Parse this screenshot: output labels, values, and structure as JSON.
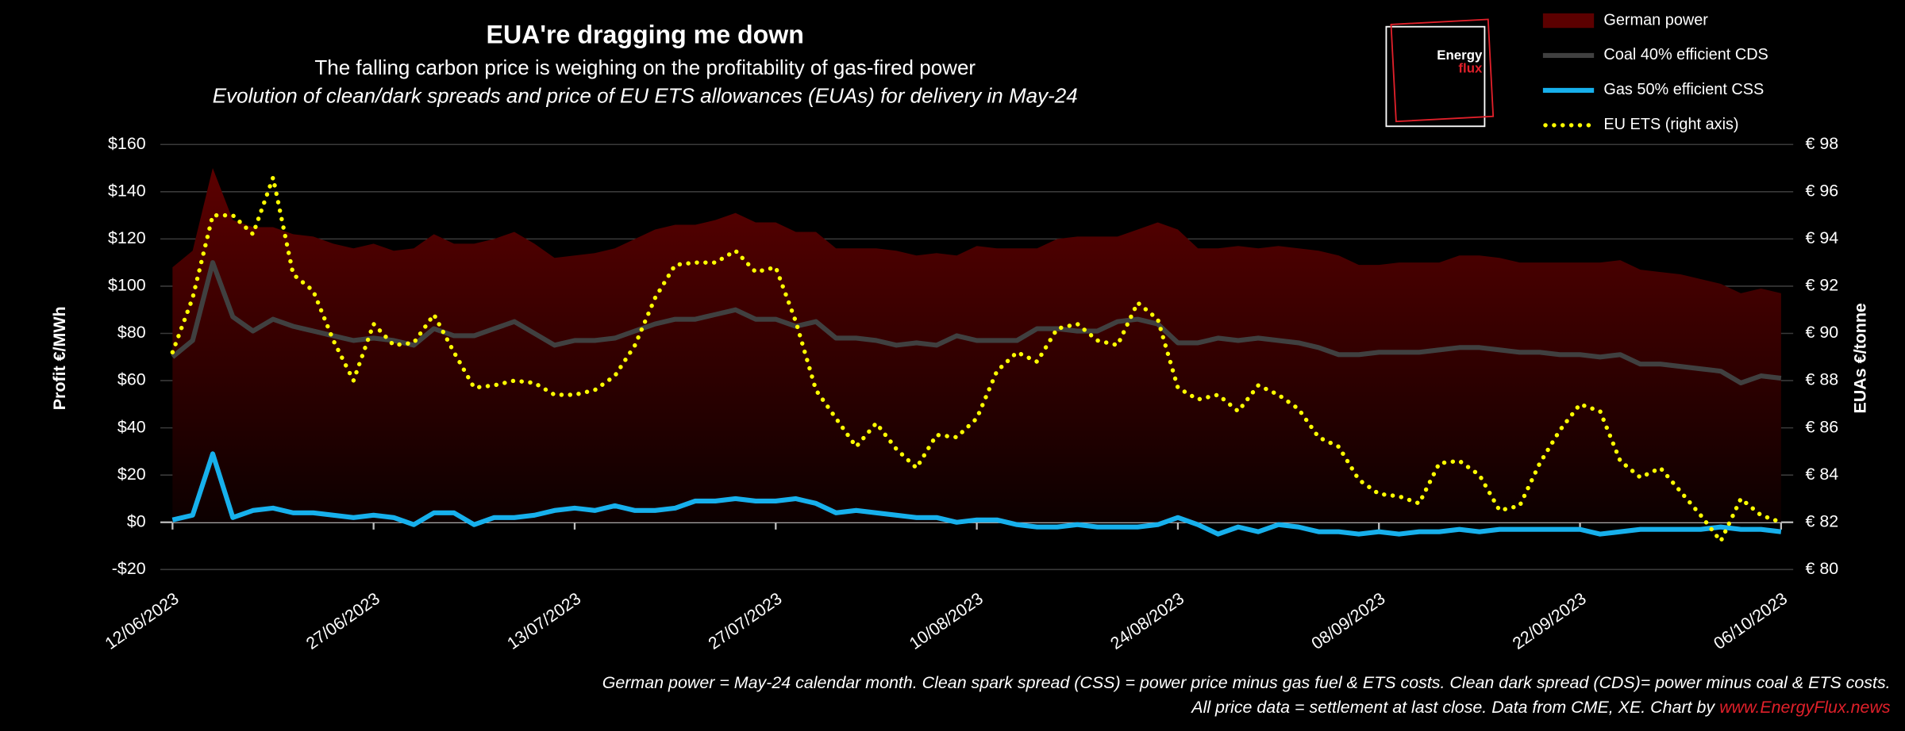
{
  "chart_data": {
    "type": "line",
    "title": "EUA're dragging me down",
    "subtitle": "The falling carbon price is weighing on the profitability of gas-fired power",
    "subtitle2": "Evolution of clean/dark spreads and price of EU ETS allowances (EUAs) for delivery in May-24",
    "ylabel": "Profit €/MWh",
    "y2label": "EUAs €/tonne",
    "logo": {
      "line1": "Energy",
      "line2": "flux"
    },
    "footnotes": [
      "German power = May-24 calendar month. Clean spark spread (CSS) = power price minus gas fuel & ETS costs. Clean dark spread (CDS)= power minus coal & ETS costs.",
      "All price data = settlement at last close. Data from CME, XE. Chart by"
    ],
    "footnote_link": "www.EnergyFlux.news",
    "categories": [
      "12/06/2023",
      null,
      null,
      null,
      null,
      null,
      null,
      null,
      null,
      null,
      "27/06/2023",
      null,
      null,
      null,
      null,
      null,
      null,
      null,
      null,
      null,
      "13/07/2023",
      null,
      null,
      null,
      null,
      null,
      null,
      null,
      null,
      null,
      "27/07/2023",
      null,
      null,
      null,
      null,
      null,
      null,
      null,
      null,
      null,
      "10/08/2023",
      null,
      null,
      null,
      null,
      null,
      null,
      null,
      null,
      null,
      "24/08/2023",
      null,
      null,
      null,
      null,
      null,
      null,
      null,
      null,
      null,
      "08/09/2023",
      null,
      null,
      null,
      null,
      null,
      null,
      null,
      null,
      null,
      "22/09/2023",
      null,
      null,
      null,
      null,
      null,
      null,
      null,
      null,
      null,
      "06/10/2023"
    ],
    "ylim": [
      -20,
      160
    ],
    "yticks": [
      {
        "value": -20,
        "label": "-$20"
      },
      {
        "value": 0,
        "label": "$0"
      },
      {
        "value": 20,
        "label": "$20"
      },
      {
        "value": 40,
        "label": "$40"
      },
      {
        "value": 60,
        "label": "$60"
      },
      {
        "value": 80,
        "label": "$80"
      },
      {
        "value": 100,
        "label": "$100"
      },
      {
        "value": 120,
        "label": "$120"
      },
      {
        "value": 140,
        "label": "$140"
      },
      {
        "value": 160,
        "label": "$160"
      }
    ],
    "y2lim": [
      80,
      98
    ],
    "y2ticks": [
      {
        "value": 80,
        "label": "€ 80"
      },
      {
        "value": 82,
        "label": "€ 82"
      },
      {
        "value": 84,
        "label": "€ 84"
      },
      {
        "value": 86,
        "label": "€ 86"
      },
      {
        "value": 88,
        "label": "€ 88"
      },
      {
        "value": 90,
        "label": "€ 90"
      },
      {
        "value": 92,
        "label": "€ 92"
      },
      {
        "value": 94,
        "label": "€ 94"
      },
      {
        "value": 96,
        "label": "€ 96"
      },
      {
        "value": 98,
        "label": "€ 98"
      }
    ],
    "grid": true,
    "legend": "top-right",
    "series": [
      {
        "name": "German power",
        "type": "area",
        "color": "#5c0000",
        "values": [
          108,
          115,
          150,
          128,
          125,
          125,
          122,
          121,
          118,
          116,
          118,
          115,
          116,
          122,
          118,
          118,
          120,
          123,
          118,
          112,
          113,
          114,
          116,
          120,
          124,
          126,
          126,
          128,
          131,
          127,
          127,
          123,
          123,
          116,
          116,
          116,
          115,
          113,
          114,
          113,
          117,
          116,
          116,
          116,
          120,
          121,
          121,
          121,
          124,
          127,
          124,
          116,
          116,
          117,
          116,
          117,
          116,
          115,
          113,
          109,
          109,
          110,
          110,
          110,
          113,
          113,
          112,
          110,
          110,
          110,
          110,
          110,
          111,
          107,
          106,
          105,
          103,
          101,
          97,
          99,
          97
        ]
      },
      {
        "name": "Coal 40% efficient CDS",
        "type": "line",
        "color": "#404040",
        "values": [
          70,
          77,
          110,
          87,
          81,
          86,
          83,
          81,
          79,
          77,
          78,
          77,
          75,
          82,
          79,
          79,
          82,
          85,
          80,
          75,
          77,
          77,
          78,
          81,
          84,
          86,
          86,
          88,
          90,
          86,
          86,
          83,
          85,
          78,
          78,
          77,
          75,
          76,
          75,
          79,
          77,
          77,
          77,
          82,
          82,
          81,
          81,
          85,
          86,
          84,
          76,
          76,
          78,
          77,
          78,
          77,
          76,
          74,
          71,
          71,
          72,
          72,
          72,
          73,
          74,
          74,
          73,
          72,
          72,
          71,
          71,
          70,
          71,
          67,
          67,
          66,
          65,
          64,
          59,
          62,
          61
        ]
      },
      {
        "name": "Gas 50% efficient CSS",
        "type": "line",
        "color": "#17b0ec",
        "values": [
          1,
          3,
          29,
          2,
          5,
          6,
          4,
          4,
          3,
          2,
          3,
          2,
          -1,
          4,
          4,
          -1,
          2,
          2,
          3,
          5,
          6,
          5,
          7,
          5,
          5,
          6,
          9,
          9,
          10,
          9,
          9,
          10,
          8,
          4,
          5,
          4,
          3,
          2,
          2,
          0,
          1,
          1,
          -1,
          -2,
          -2,
          -1,
          -2,
          -2,
          -2,
          -1,
          2,
          -1,
          -5,
          -2,
          -4,
          -1,
          -2,
          -4,
          -4,
          -5,
          -4,
          -5,
          -4,
          -4,
          -3,
          -4,
          -3,
          -3,
          -3,
          -3,
          -3,
          -5,
          -4,
          -3,
          -3,
          -3,
          -3,
          -2,
          -3,
          -3,
          -4
        ]
      },
      {
        "name": "EU ETS (right axis)",
        "type": "dotted",
        "color": "#ffff00",
        "axis": "y2",
        "values": [
          89.2,
          91.5,
          95,
          95,
          94.2,
          96.6,
          92.5,
          91.8,
          89.7,
          88,
          90.4,
          89.5,
          89.6,
          90.8,
          89.2,
          87.7,
          87.8,
          88,
          87.9,
          87.4,
          87.4,
          87.6,
          88.2,
          89.5,
          91.5,
          92.9,
          93,
          93,
          93.5,
          92.6,
          92.8,
          90.5,
          87.6,
          86.4,
          85.2,
          86.2,
          85.1,
          84.3,
          85.7,
          85.6,
          86.4,
          88.4,
          89.2,
          88.8,
          90.2,
          90.4,
          89.7,
          89.5,
          91.3,
          90.6,
          87.7,
          87.2,
          87.4,
          86.7,
          87.8,
          87.4,
          86.8,
          85.6,
          85.2,
          83.8,
          83.2,
          83.1,
          82.8,
          84.5,
          84.6,
          84,
          82.5,
          82.7,
          84.5,
          85.9,
          87,
          86.7,
          84.6,
          83.9,
          84.3,
          83.3,
          82.3,
          81.2,
          83,
          82.3,
          82
        ]
      }
    ]
  }
}
